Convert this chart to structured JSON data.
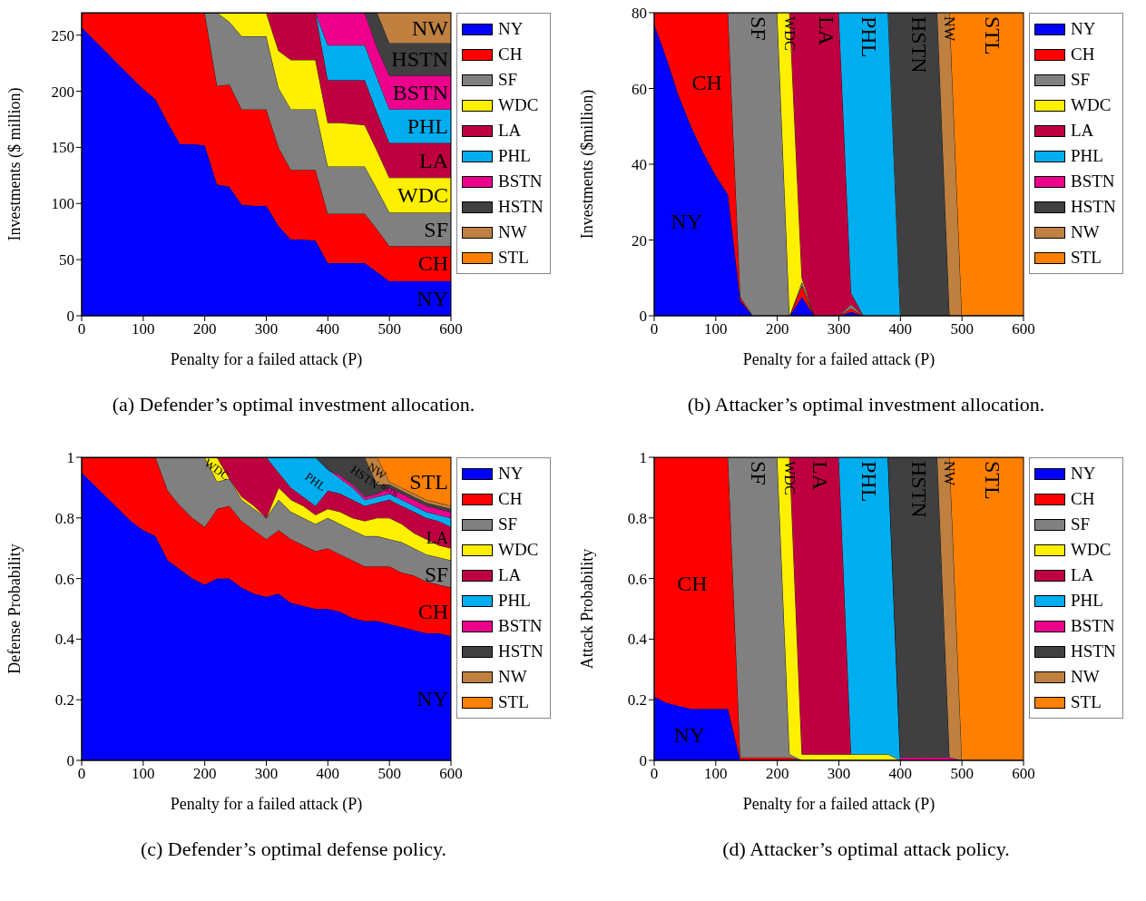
{
  "chart_data": [
    {
      "type": "area",
      "stacked": true,
      "title": "(a) Defender’s optimal investment allocation.",
      "xlabel": "Penalty for a failed attack (P)",
      "ylabel": "Investments ($ million)",
      "legend": "top right",
      "xlim": [
        0,
        600
      ],
      "xticks": [
        0,
        100,
        200,
        300,
        400,
        500,
        600
      ],
      "ylim": [
        0,
        270
      ],
      "yticks": [
        0,
        50,
        100,
        150,
        200,
        250
      ],
      "x": [
        0,
        20,
        40,
        60,
        80,
        100,
        120,
        140,
        160,
        180,
        200,
        220,
        240,
        260,
        280,
        300,
        320,
        340,
        360,
        380,
        400,
        420,
        440,
        460,
        480,
        500,
        520,
        540,
        560,
        580,
        600
      ],
      "series": [
        {
          "name": "NY",
          "color": "#0000ff",
          "values": [
            257,
            246,
            235,
            224,
            213,
            202,
            193,
            172,
            153,
            153,
            152,
            117,
            115,
            99,
            98,
            98,
            80,
            68,
            68,
            67,
            47,
            47,
            47,
            47,
            39,
            31,
            31,
            31,
            31,
            31,
            31
          ]
        },
        {
          "name": "CH",
          "color": "#ff0000",
          "values": [
            13,
            24,
            35,
            46,
            57,
            68,
            77,
            98,
            117,
            117,
            118,
            88,
            91,
            85,
            86,
            86,
            70,
            62,
            62,
            63,
            44,
            44,
            44,
            44,
            38,
            31,
            31,
            31,
            31,
            31,
            31
          ]
        },
        {
          "name": "SF",
          "color": "#808080",
          "values": [
            0,
            0,
            0,
            0,
            0,
            0,
            0,
            0,
            0,
            0,
            0,
            65,
            56,
            65,
            65,
            65,
            53,
            54,
            54,
            54,
            42,
            42,
            42,
            42,
            36,
            30,
            30,
            30,
            30,
            30,
            30
          ]
        },
        {
          "name": "WDC",
          "color": "#fff000",
          "values": [
            0,
            0,
            0,
            0,
            0,
            0,
            0,
            0,
            0,
            0,
            0,
            0,
            8,
            21,
            21,
            21,
            33,
            44,
            44,
            44,
            39,
            39,
            38,
            37,
            34,
            31,
            31,
            31,
            31,
            31,
            31
          ]
        },
        {
          "name": "LA",
          "color": "#bf0040",
          "values": [
            0,
            0,
            0,
            0,
            0,
            0,
            0,
            0,
            0,
            0,
            0,
            0,
            0,
            0,
            0,
            0,
            34,
            42,
            42,
            42,
            38,
            38,
            39,
            40,
            34,
            31,
            31,
            31,
            31,
            31,
            31
          ]
        },
        {
          "name": "PHL",
          "color": "#00aeef",
          "values": [
            0,
            0,
            0,
            0,
            0,
            0,
            0,
            0,
            0,
            0,
            0,
            0,
            0,
            0,
            0,
            0,
            0,
            0,
            0,
            0,
            31,
            31,
            31,
            31,
            31,
            30,
            30,
            30,
            30,
            30,
            30
          ]
        },
        {
          "name": "BSTN",
          "color": "#ec008c",
          "values": [
            0,
            0,
            0,
            0,
            0,
            0,
            0,
            0,
            0,
            0,
            0,
            0,
            0,
            0,
            0,
            0,
            0,
            0,
            0,
            0,
            29,
            29,
            29,
            29,
            27,
            30,
            30,
            30,
            30,
            30,
            30
          ]
        },
        {
          "name": "HSTN",
          "color": "#404040",
          "values": [
            0,
            0,
            0,
            0,
            0,
            0,
            0,
            0,
            0,
            0,
            0,
            0,
            0,
            0,
            0,
            0,
            0,
            0,
            0,
            0,
            0,
            0,
            0,
            0,
            31,
            29,
            29,
            29,
            29,
            29,
            29
          ]
        },
        {
          "name": "NW",
          "color": "#bf8040",
          "values": [
            0,
            0,
            0,
            0,
            0,
            0,
            0,
            0,
            0,
            0,
            0,
            0,
            0,
            0,
            0,
            0,
            0,
            0,
            0,
            0,
            0,
            0,
            0,
            0,
            0,
            27,
            27,
            27,
            27,
            27,
            27
          ]
        },
        {
          "name": "STL",
          "color": "#ff8000",
          "values": [
            null,
            null,
            null,
            null,
            null,
            null,
            null,
            null,
            null,
            null,
            null,
            null,
            null,
            null,
            null,
            null,
            null,
            null,
            null,
            null,
            null,
            null,
            null,
            null,
            null,
            null,
            null,
            null,
            null,
            null,
            null
          ]
        }
      ]
    },
    {
      "type": "area",
      "stacked": true,
      "title": "(b) Attacker’s optimal investment allocation.",
      "xlabel": "Penalty for a failed attack (P)",
      "ylabel": "Investments ($million)",
      "legend": "top right",
      "xlim": [
        0,
        600
      ],
      "xticks": [
        0,
        100,
        200,
        300,
        400,
        500,
        600
      ],
      "ylim": [
        0,
        80
      ],
      "yticks": [
        0,
        20,
        40,
        60,
        80
      ],
      "x": [
        0,
        20,
        40,
        60,
        80,
        100,
        120,
        140,
        160,
        180,
        200,
        220,
        240,
        260,
        280,
        300,
        320,
        340,
        360,
        380,
        400,
        420,
        440,
        460,
        480,
        500,
        520,
        540,
        560,
        580,
        600
      ],
      "series": [
        {
          "name": "NY",
          "color": "#0000ff",
          "values": [
            77,
            68,
            58,
            50,
            43,
            37,
            32,
            4,
            0,
            null,
            null,
            0,
            5,
            0,
            null,
            0,
            1,
            0,
            null,
            null,
            null,
            null,
            null,
            null,
            null,
            null,
            null,
            null,
            null,
            null,
            null
          ]
        },
        {
          "name": "CH",
          "color": "#ff0000",
          "values": [
            3,
            12,
            22,
            30,
            37,
            43,
            48,
            1,
            0,
            null,
            null,
            0,
            3,
            0,
            null,
            0,
            1,
            0,
            null,
            null,
            null,
            null,
            null,
            null,
            null,
            null,
            null,
            null,
            null,
            null,
            null
          ]
        },
        {
          "name": "SF",
          "color": "#808080",
          "values": [
            null,
            null,
            null,
            null,
            null,
            null,
            0,
            75,
            80,
            80,
            80,
            0,
            1,
            0,
            null,
            0,
            1,
            0,
            null,
            null,
            null,
            null,
            null,
            null,
            null,
            null,
            null,
            null,
            null,
            null,
            null
          ]
        },
        {
          "name": "WDC",
          "color": "#fff000",
          "values": [
            null,
            null,
            null,
            null,
            null,
            null,
            null,
            null,
            null,
            null,
            0,
            80,
            1,
            0,
            null,
            null,
            null,
            null,
            null,
            null,
            null,
            null,
            null,
            null,
            null,
            null,
            null,
            null,
            null,
            null,
            null
          ]
        },
        {
          "name": "LA",
          "color": "#bf0040",
          "values": [
            null,
            null,
            null,
            null,
            null,
            null,
            null,
            null,
            null,
            null,
            null,
            0,
            70,
            80,
            80,
            80,
            3,
            0,
            null,
            null,
            null,
            null,
            null,
            null,
            null,
            null,
            null,
            null,
            null,
            null,
            null
          ]
        },
        {
          "name": "PHL",
          "color": "#00aeef",
          "values": [
            null,
            null,
            null,
            null,
            null,
            null,
            null,
            null,
            null,
            null,
            null,
            null,
            null,
            null,
            null,
            0,
            74,
            80,
            80,
            80,
            0,
            null,
            null,
            null,
            null,
            null,
            null,
            null,
            null,
            null,
            null
          ]
        },
        {
          "name": "BSTN",
          "color": "#ec008c",
          "values": [
            null,
            null,
            null,
            null,
            null,
            null,
            null,
            null,
            null,
            null,
            null,
            null,
            null,
            null,
            null,
            null,
            null,
            null,
            null,
            null,
            null,
            null,
            null,
            null,
            null,
            null,
            null,
            null,
            null,
            null,
            null
          ]
        },
        {
          "name": "HSTN",
          "color": "#404040",
          "values": [
            null,
            null,
            null,
            null,
            null,
            null,
            null,
            null,
            null,
            null,
            null,
            null,
            null,
            null,
            null,
            null,
            null,
            null,
            null,
            0,
            80,
            80,
            80,
            80,
            0,
            null,
            null,
            null,
            null,
            null,
            null
          ]
        },
        {
          "name": "NW",
          "color": "#bf8040",
          "values": [
            null,
            null,
            null,
            null,
            null,
            null,
            null,
            null,
            null,
            null,
            null,
            null,
            null,
            null,
            null,
            null,
            null,
            null,
            null,
            null,
            null,
            null,
            null,
            0,
            80,
            0,
            null,
            null,
            null,
            null,
            null
          ]
        },
        {
          "name": "STL",
          "color": "#ff8000",
          "values": [
            null,
            null,
            null,
            null,
            null,
            null,
            null,
            null,
            null,
            null,
            null,
            null,
            null,
            null,
            null,
            null,
            null,
            null,
            null,
            null,
            null,
            null,
            null,
            null,
            0,
            80,
            80,
            80,
            80,
            80,
            80
          ]
        }
      ]
    },
    {
      "type": "area",
      "stacked": true,
      "title": "(c) Defender’s optimal defense policy.",
      "xlabel": "Penalty for a failed attack (P)",
      "ylabel": "Defense Probability",
      "legend": "top right",
      "xlim": [
        0,
        600
      ],
      "xticks": [
        0,
        100,
        200,
        300,
        400,
        500,
        600
      ],
      "ylim": [
        0,
        1
      ],
      "yticks": [
        0,
        0.2,
        0.4,
        0.6,
        0.8,
        1
      ],
      "x": [
        0,
        20,
        40,
        60,
        80,
        100,
        120,
        140,
        160,
        180,
        200,
        220,
        240,
        260,
        280,
        300,
        320,
        340,
        360,
        380,
        400,
        420,
        440,
        460,
        480,
        500,
        520,
        540,
        560,
        580,
        600
      ],
      "series": [
        {
          "name": "NY",
          "color": "#0000ff",
          "values": [
            0.95,
            0.91,
            0.87,
            0.83,
            0.79,
            0.76,
            0.74,
            0.66,
            0.63,
            0.6,
            0.58,
            0.6,
            0.6,
            0.57,
            0.55,
            0.54,
            0.55,
            0.52,
            0.51,
            0.5,
            0.5,
            0.49,
            0.47,
            0.46,
            0.46,
            0.45,
            0.44,
            0.43,
            0.42,
            0.42,
            0.41
          ]
        },
        {
          "name": "CH",
          "color": "#ff0000",
          "values": [
            0.05,
            0.09,
            0.13,
            0.17,
            0.21,
            0.24,
            0.26,
            0.23,
            0.21,
            0.2,
            0.19,
            0.23,
            0.24,
            0.22,
            0.21,
            0.19,
            0.21,
            0.21,
            0.2,
            0.19,
            0.2,
            0.19,
            0.19,
            0.18,
            0.18,
            0.19,
            0.18,
            0.18,
            0.17,
            0.16,
            0.16
          ]
        },
        {
          "name": "SF",
          "color": "#808080",
          "values": [
            0,
            0,
            0,
            0,
            0,
            0,
            0,
            0.11,
            0.16,
            0.2,
            0.23,
            0.09,
            0.09,
            0.07,
            0.07,
            0.07,
            0.1,
            0.09,
            0.09,
            0.09,
            0.1,
            0.1,
            0.1,
            0.1,
            0.1,
            0.09,
            0.1,
            0.09,
            0.09,
            0.09,
            0.09
          ]
        },
        {
          "name": "WDC",
          "color": "#fff000",
          "values": [
            0,
            0,
            0,
            0,
            0,
            0,
            0,
            0,
            0,
            0,
            0,
            0.08,
            0,
            0.01,
            0.01,
            0,
            0.04,
            0.04,
            0.04,
            0.03,
            0.03,
            0.04,
            0.04,
            0.05,
            0.06,
            0.07,
            0.06,
            0.05,
            0.05,
            0.04,
            0.04
          ]
        },
        {
          "name": "LA",
          "color": "#bf0040",
          "values": [
            0,
            0,
            0,
            0,
            0,
            0,
            0,
            0,
            0,
            0,
            0,
            0,
            0.07,
            0.13,
            0.16,
            0.2,
            0.05,
            0.04,
            0.03,
            0.03,
            0.06,
            0.06,
            0.06,
            0.05,
            0.05,
            0.06,
            0.06,
            0.07,
            0.07,
            0.08,
            0.07
          ]
        },
        {
          "name": "PHL",
          "color": "#00aeef",
          "values": [
            0,
            0,
            0,
            0,
            0,
            0,
            0,
            0,
            0,
            0,
            0,
            0,
            0,
            0,
            0,
            0,
            0.05,
            0.1,
            0.13,
            0.16,
            0.07,
            0.05,
            0.04,
            0.02,
            0.02,
            0.02,
            0.02,
            0.02,
            0.02,
            0.02,
            0.03
          ]
        },
        {
          "name": "BSTN",
          "color": "#ec008c",
          "values": [
            0,
            0,
            0,
            0,
            0,
            0,
            0,
            0,
            0,
            0,
            0,
            0,
            0,
            0,
            0,
            0,
            0,
            0,
            0,
            0,
            0,
            0.01,
            0.01,
            0.01,
            0.01,
            0.02,
            0.02,
            0.02,
            0.02,
            0.02,
            0.02
          ]
        },
        {
          "name": "HSTN",
          "color": "#404040",
          "values": [
            0,
            0,
            0,
            0,
            0,
            0,
            0,
            0,
            0,
            0,
            0,
            0,
            0,
            0,
            0,
            0,
            0,
            0,
            0,
            0,
            0.04,
            0.06,
            0.09,
            0.13,
            0.03,
            0.01,
            0.01,
            0.01,
            0.01,
            0.01,
            0.01
          ]
        },
        {
          "name": "NW",
          "color": "#bf8040",
          "values": [
            0,
            0,
            0,
            0,
            0,
            0,
            0,
            0,
            0,
            0,
            0,
            0,
            0,
            0,
            0,
            0,
            0,
            0,
            0,
            0,
            0,
            0,
            0,
            0,
            0.09,
            0.01,
            0.01,
            0.01,
            0.01,
            0.01,
            0.01
          ]
        },
        {
          "name": "STL",
          "color": "#ff8000",
          "values": [
            0,
            0,
            0,
            0,
            0,
            0,
            0,
            0,
            0,
            0,
            0,
            0,
            0,
            0,
            0,
            0,
            0,
            0,
            0,
            0,
            0,
            0,
            0,
            0,
            0,
            0.08,
            0.1,
            0.12,
            0.14,
            0.15,
            0.16
          ]
        }
      ]
    },
    {
      "type": "area",
      "stacked": true,
      "title": "(d) Attacker’s optimal attack policy.",
      "xlabel": "Penalty for a failed attack (P)",
      "ylabel": "Attack Probability",
      "legend": "top right",
      "xlim": [
        0,
        600
      ],
      "xticks": [
        0,
        100,
        200,
        300,
        400,
        500,
        600
      ],
      "ylim": [
        0,
        1
      ],
      "yticks": [
        0,
        0.2,
        0.4,
        0.6,
        0.8,
        1
      ],
      "x": [
        0,
        20,
        40,
        60,
        80,
        100,
        120,
        140,
        160,
        180,
        200,
        220,
        240,
        260,
        280,
        300,
        320,
        340,
        360,
        380,
        400,
        420,
        440,
        460,
        480,
        500,
        520,
        540,
        560,
        580,
        600
      ],
      "series": [
        {
          "name": "NY",
          "color": "#0000ff",
          "values": [
            0.21,
            0.19,
            0.18,
            0.17,
            0.17,
            0.17,
            0.17,
            0,
            null,
            null,
            null,
            null,
            null,
            null,
            null,
            null,
            null,
            null,
            null,
            null,
            null,
            null,
            null,
            null,
            null,
            null,
            null,
            null,
            null,
            null,
            null
          ]
        },
        {
          "name": "CH",
          "color": "#ff0000",
          "values": [
            0.79,
            0.81,
            0.82,
            0.83,
            0.83,
            0.83,
            0.83,
            0.01,
            0.01,
            0.01,
            0.01,
            0.01,
            0,
            null,
            null,
            null,
            null,
            null,
            null,
            null,
            null,
            null,
            null,
            null,
            null,
            null,
            null,
            null,
            null,
            null,
            null
          ]
        },
        {
          "name": "SF",
          "color": "#808080",
          "values": [
            null,
            null,
            null,
            null,
            null,
            null,
            0,
            0.99,
            0.99,
            0.99,
            0.99,
            0.01,
            0,
            null,
            null,
            null,
            null,
            null,
            null,
            null,
            null,
            null,
            null,
            null,
            null,
            null,
            null,
            null,
            null,
            null,
            null
          ]
        },
        {
          "name": "WDC",
          "color": "#fff000",
          "values": [
            null,
            null,
            null,
            null,
            null,
            null,
            null,
            null,
            null,
            null,
            0,
            0.98,
            0.02,
            0.02,
            0.02,
            0.02,
            0.02,
            0.02,
            0.02,
            0.02,
            0,
            null,
            null,
            null,
            null,
            null,
            null,
            null,
            null,
            null,
            null
          ]
        },
        {
          "name": "LA",
          "color": "#bf0040",
          "values": [
            null,
            null,
            null,
            null,
            null,
            null,
            null,
            null,
            null,
            null,
            null,
            0,
            0.98,
            0.98,
            0.98,
            0.98,
            0,
            null,
            null,
            null,
            null,
            null,
            null,
            null,
            null,
            null,
            null,
            null,
            null,
            null,
            null
          ]
        },
        {
          "name": "PHL",
          "color": "#00aeef",
          "values": [
            null,
            null,
            null,
            null,
            null,
            null,
            null,
            null,
            null,
            null,
            null,
            null,
            null,
            null,
            null,
            0,
            0.98,
            0.98,
            0.98,
            0.98,
            0,
            null,
            null,
            null,
            null,
            null,
            null,
            null,
            null,
            null,
            null
          ]
        },
        {
          "name": "BSTN",
          "color": "#ec008c",
          "values": [
            null,
            null,
            null,
            null,
            null,
            null,
            null,
            null,
            null,
            null,
            null,
            null,
            null,
            null,
            null,
            null,
            null,
            null,
            null,
            0,
            0.01,
            0.01,
            0.01,
            0.01,
            0.01,
            0,
            null,
            null,
            null,
            null,
            null
          ]
        },
        {
          "name": "HSTN",
          "color": "#404040",
          "values": [
            null,
            null,
            null,
            null,
            null,
            null,
            null,
            null,
            null,
            null,
            null,
            null,
            null,
            null,
            null,
            null,
            null,
            null,
            null,
            0,
            0.99,
            0.99,
            0.99,
            0.99,
            0,
            null,
            null,
            null,
            null,
            null,
            null
          ]
        },
        {
          "name": "NW",
          "color": "#bf8040",
          "values": [
            null,
            null,
            null,
            null,
            null,
            null,
            null,
            null,
            null,
            null,
            null,
            null,
            null,
            null,
            null,
            null,
            null,
            null,
            null,
            null,
            null,
            null,
            null,
            0,
            0.99,
            0,
            null,
            null,
            null,
            null,
            null
          ]
        },
        {
          "name": "STL",
          "color": "#ff8000",
          "values": [
            null,
            null,
            null,
            null,
            null,
            null,
            null,
            null,
            null,
            null,
            null,
            null,
            null,
            null,
            null,
            null,
            null,
            null,
            null,
            null,
            null,
            null,
            null,
            null,
            0,
            1,
            1,
            1,
            1,
            1,
            1
          ]
        }
      ]
    }
  ]
}
